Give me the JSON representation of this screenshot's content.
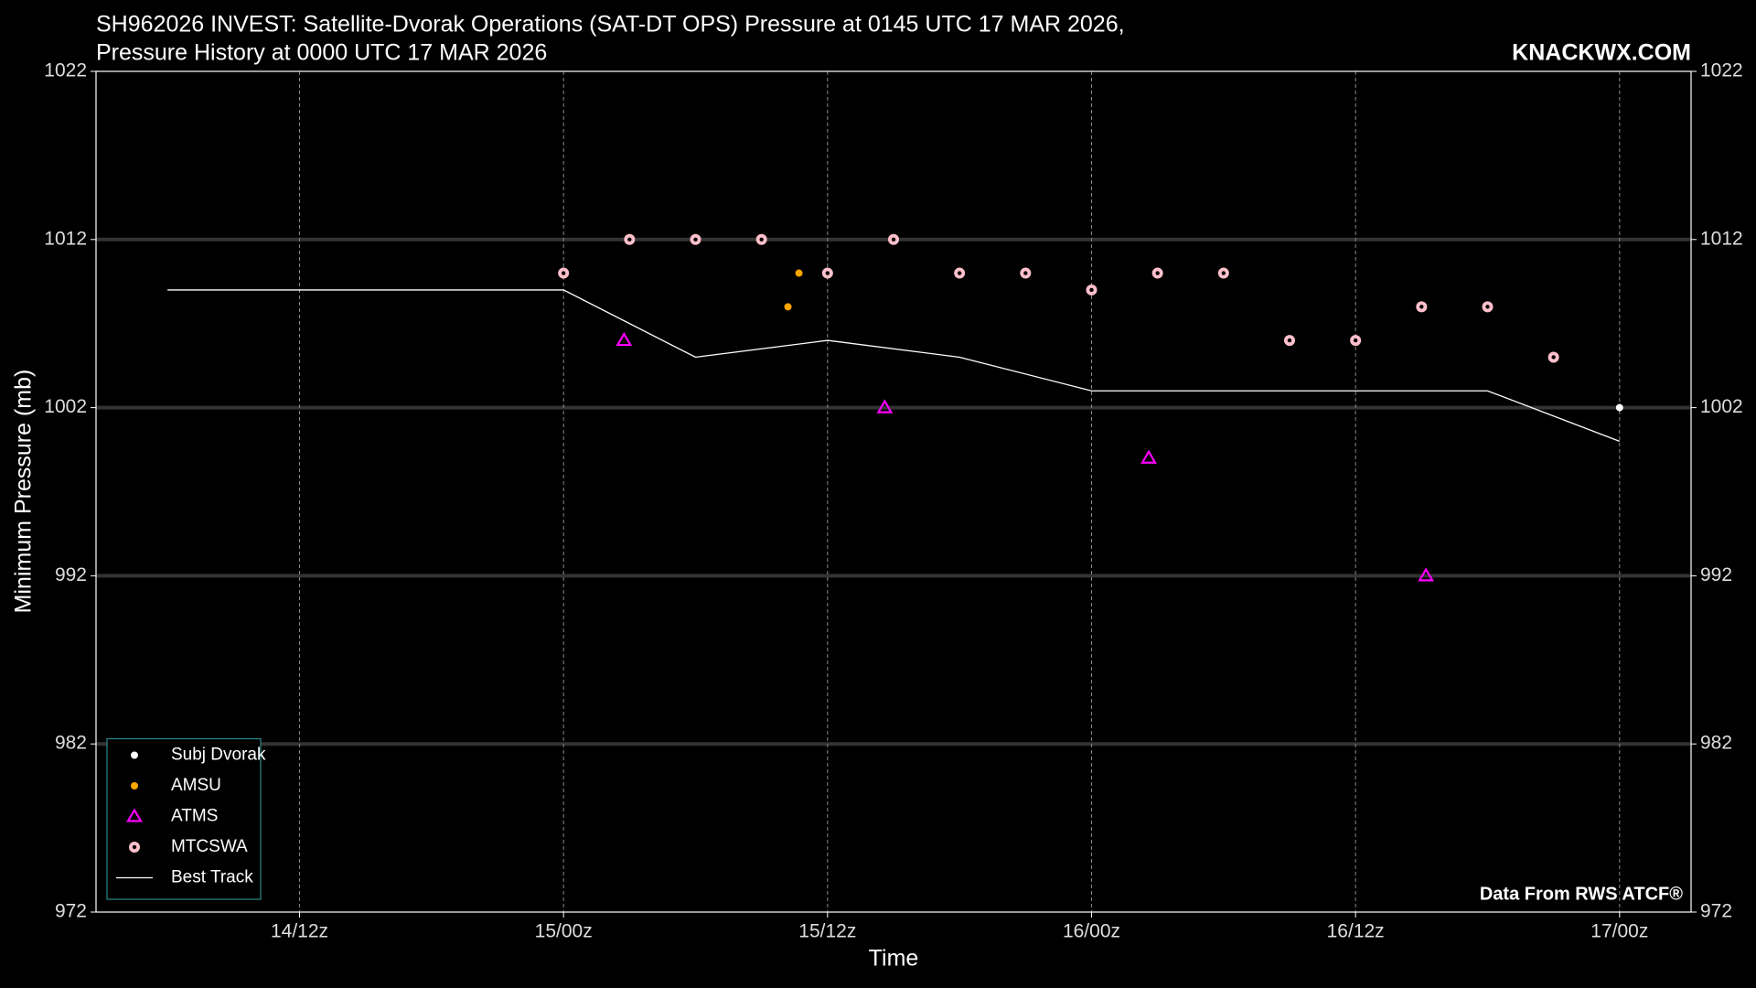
{
  "chart_data": {
    "type": "scatter",
    "title": [
      "SH962026 INVEST: Satellite-Dvorak Operations (SAT-DT OPS) Pressure at 0145 UTC 17 MAR 2026,",
      "Pressure History at 0000 UTC 17 MAR 2026"
    ],
    "watermark": "KNACKWX.COM",
    "source": "Data From RWS ATCF®",
    "x_label": "Time",
    "y_label": "Minimum Pressure (mb)",
    "xlim": [
      2.75,
      75.25
    ],
    "ylim": [
      972,
      1022
    ],
    "xticks": [
      {
        "value": 12,
        "label": "14/12z"
      },
      {
        "value": 24,
        "label": "15/00z"
      },
      {
        "value": 36,
        "label": "15/12z"
      },
      {
        "value": 48,
        "label": "16/00z"
      },
      {
        "value": 60,
        "label": "16/12z"
      },
      {
        "value": 72,
        "label": "17/00z"
      }
    ],
    "yticks": [
      972,
      982,
      992,
      1002,
      1012,
      1022
    ],
    "grid": true,
    "legend": "lower left",
    "series": [
      {
        "name": "Subj Dvorak",
        "color": "#ffffff",
        "marker": "dot",
        "x": [
          72
        ],
        "values": [
          1002
        ]
      },
      {
        "name": "AMSU",
        "color": "#ffa500",
        "marker": "dot",
        "x": [
          34.2,
          34.7
        ],
        "values": [
          1008,
          1010
        ]
      },
      {
        "name": "ATMS",
        "color": "#ff00ff",
        "marker": "triangle",
        "x": [
          26.75,
          38.6,
          50.6,
          63.2
        ],
        "values": [
          1006,
          1002,
          999,
          992
        ]
      },
      {
        "name": "MTCSWA",
        "color": "#ffc0cb",
        "marker": "ring",
        "x": [
          24,
          27,
          30,
          33,
          36,
          39,
          42,
          45,
          48,
          51,
          54,
          57,
          60,
          63,
          66,
          69
        ],
        "values": [
          1010,
          1012,
          1012,
          1012,
          1010,
          1012,
          1010,
          1010,
          1009,
          1010,
          1010,
          1006,
          1006,
          1008,
          1008,
          1005
        ]
      },
      {
        "name": "Best Track",
        "color": "#ffffff",
        "marker": "line",
        "x": [
          6,
          24,
          30,
          36,
          42,
          48,
          54,
          60,
          66,
          72
        ],
        "values": [
          1009,
          1009,
          1005,
          1006,
          1005,
          1003,
          1003,
          1003,
          1003,
          1000
        ]
      }
    ]
  }
}
